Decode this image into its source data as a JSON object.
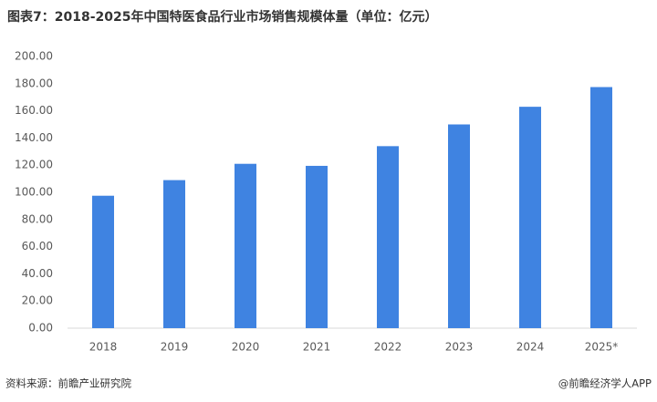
{
  "chart_data": {
    "type": "bar",
    "title": "图表7：2018-2025年中国特医食品行业市场销售规模体量（单位：亿元）",
    "categories": [
      "2018",
      "2019",
      "2020",
      "2021",
      "2022",
      "2023",
      "2024",
      "2025*"
    ],
    "values": [
      97.5,
      109,
      121,
      119.5,
      134,
      150,
      163,
      177.5
    ],
    "color": "#3f83e1",
    "ylim": [
      0,
      200
    ],
    "yticks": [
      {
        "value": 0,
        "label": "0.00"
      },
      {
        "value": 20,
        "label": "20.00"
      },
      {
        "value": 40,
        "label": "40.00"
      },
      {
        "value": 60,
        "label": "60.00"
      },
      {
        "value": 80,
        "label": "80.00"
      },
      {
        "value": 100,
        "label": "100.00"
      },
      {
        "value": 120,
        "label": "120.00"
      },
      {
        "value": 140,
        "label": "140.00"
      },
      {
        "value": 160,
        "label": "160.00"
      },
      {
        "value": 180,
        "label": "180.00"
      },
      {
        "value": 200,
        "label": "200.00"
      }
    ],
    "grid": false,
    "source": "资料来源：前瞻产业研究院",
    "credit": "@前瞻经济学人APP"
  }
}
